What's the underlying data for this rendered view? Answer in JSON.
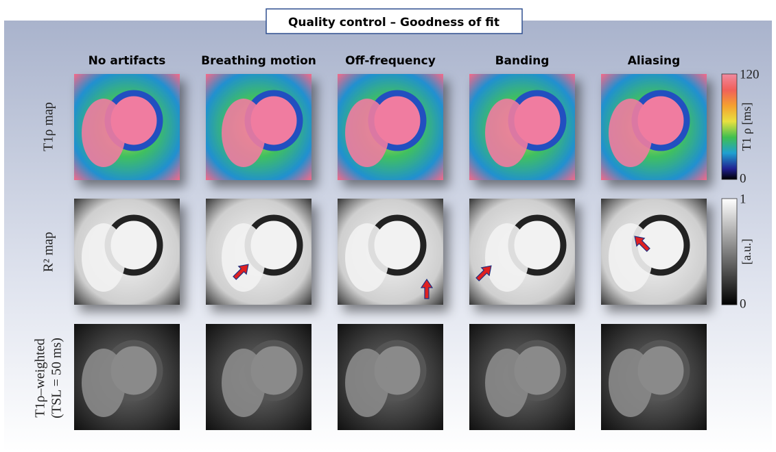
{
  "title": "Quality control – Goodness of fit",
  "columns": [
    "No artifacts",
    "Breathing motion",
    "Off-frequency",
    "Banding",
    "Aliasing"
  ],
  "rows": [
    [
      "T1ρ map"
    ],
    [
      "R² map"
    ],
    [
      "T1ρ–weighted",
      "(TSL = 50 ms)"
    ]
  ],
  "colorbars": [
    {
      "max_label": "120",
      "min_label": "0",
      "unit": "T1 ρ [ms]"
    },
    {
      "max_label": "1",
      "min_label": "0",
      "unit": "[a.u.]"
    }
  ]
}
